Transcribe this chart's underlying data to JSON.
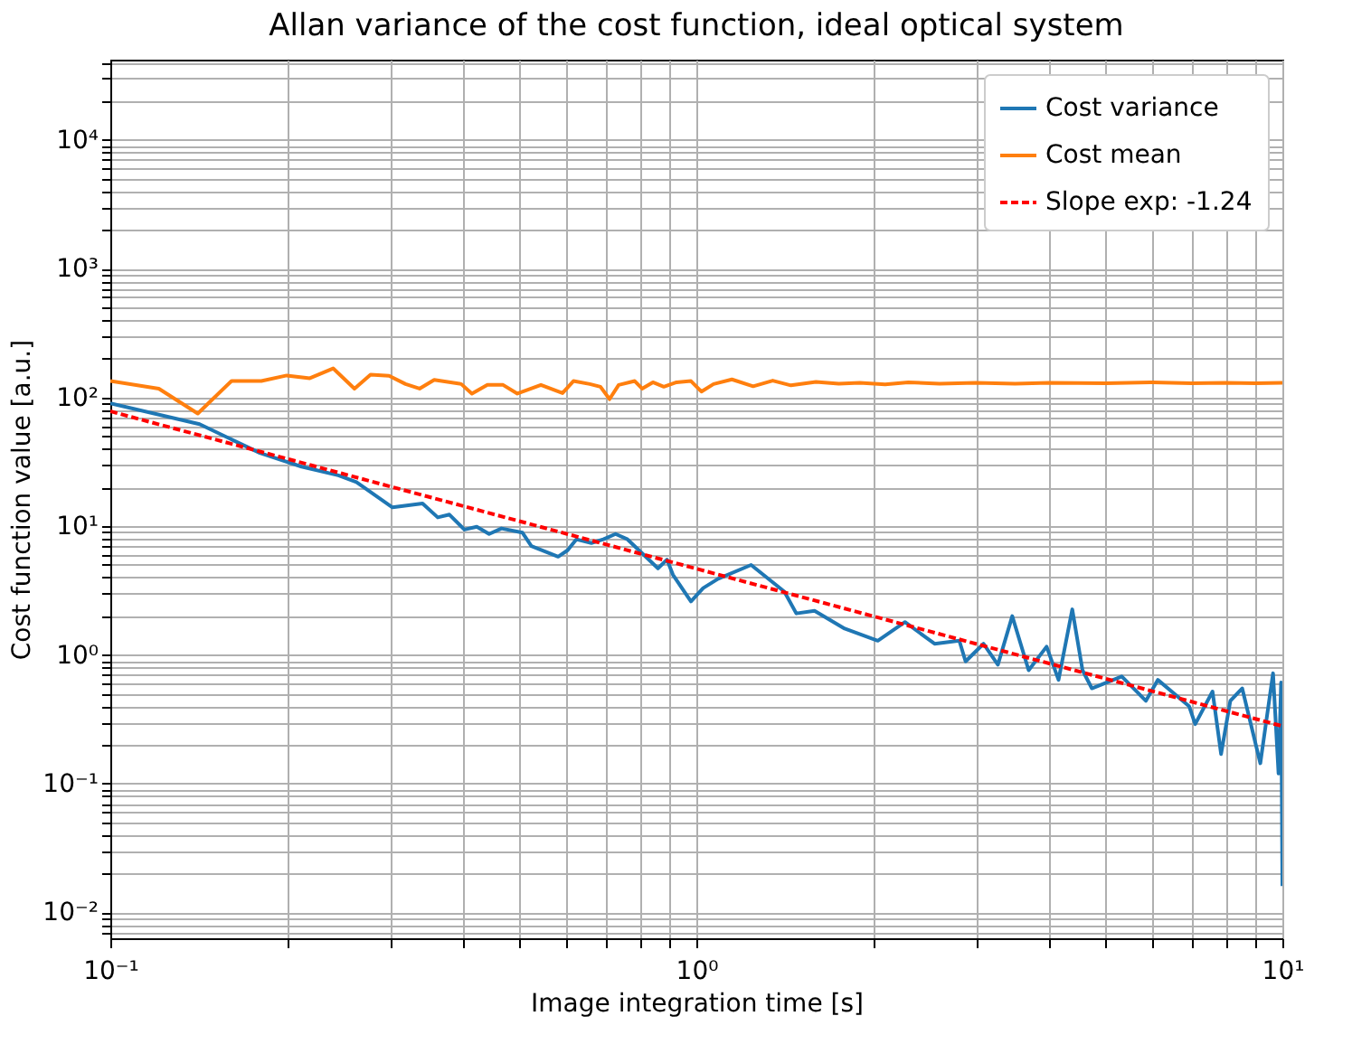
{
  "chart_data": {
    "type": "line",
    "title": "Allan variance of the cost function, ideal optical system",
    "xlabel": "Image integration time [s]",
    "ylabel": "Cost function value [a.u.]",
    "log": "xy",
    "grid": true,
    "legend": "top right",
    "xlim": [
      0.1,
      10
    ],
    "ylim": [
      0.0063,
      42000
    ],
    "xticks": [
      {
        "value": 0.1,
        "label": "10⁻¹"
      },
      {
        "value": 0.2,
        "label": null
      },
      {
        "value": 0.3,
        "label": null
      },
      {
        "value": 0.4,
        "label": null
      },
      {
        "value": 0.5,
        "label": null
      },
      {
        "value": 0.6,
        "label": null
      },
      {
        "value": 0.7,
        "label": null
      },
      {
        "value": 0.8,
        "label": null
      },
      {
        "value": 0.9,
        "label": null
      },
      {
        "value": 1,
        "label": "10⁰"
      },
      {
        "value": 2,
        "label": null
      },
      {
        "value": 3,
        "label": null
      },
      {
        "value": 4,
        "label": null
      },
      {
        "value": 5,
        "label": null
      },
      {
        "value": 6,
        "label": null
      },
      {
        "value": 7,
        "label": null
      },
      {
        "value": 8,
        "label": null
      },
      {
        "value": 9,
        "label": null
      },
      {
        "value": 10,
        "label": "10¹"
      }
    ],
    "yticks": [
      {
        "value": 0.007,
        "label": null
      },
      {
        "value": 0.008,
        "label": null
      },
      {
        "value": 0.009,
        "label": null
      },
      {
        "value": 0.01,
        "label": "10⁻²"
      },
      {
        "value": 0.02,
        "label": null
      },
      {
        "value": 0.03,
        "label": null
      },
      {
        "value": 0.04,
        "label": null
      },
      {
        "value": 0.05,
        "label": null
      },
      {
        "value": 0.06,
        "label": null
      },
      {
        "value": 0.07,
        "label": null
      },
      {
        "value": 0.08,
        "label": null
      },
      {
        "value": 0.09,
        "label": null
      },
      {
        "value": 0.1,
        "label": "10⁻¹"
      },
      {
        "value": 0.2,
        "label": null
      },
      {
        "value": 0.3,
        "label": null
      },
      {
        "value": 0.4,
        "label": null
      },
      {
        "value": 0.5,
        "label": null
      },
      {
        "value": 0.6,
        "label": null
      },
      {
        "value": 0.7,
        "label": null
      },
      {
        "value": 0.8,
        "label": null
      },
      {
        "value": 0.9,
        "label": null
      },
      {
        "value": 1,
        "label": "10⁰"
      },
      {
        "value": 2,
        "label": null
      },
      {
        "value": 3,
        "label": null
      },
      {
        "value": 4,
        "label": null
      },
      {
        "value": 5,
        "label": null
      },
      {
        "value": 6,
        "label": null
      },
      {
        "value": 7,
        "label": null
      },
      {
        "value": 8,
        "label": null
      },
      {
        "value": 9,
        "label": null
      },
      {
        "value": 10,
        "label": "10¹"
      },
      {
        "value": 20,
        "label": null
      },
      {
        "value": 30,
        "label": null
      },
      {
        "value": 40,
        "label": null
      },
      {
        "value": 50,
        "label": null
      },
      {
        "value": 60,
        "label": null
      },
      {
        "value": 70,
        "label": null
      },
      {
        "value": 80,
        "label": null
      },
      {
        "value": 90,
        "label": null
      },
      {
        "value": 100,
        "label": "10²"
      },
      {
        "value": 200,
        "label": null
      },
      {
        "value": 300,
        "label": null
      },
      {
        "value": 400,
        "label": null
      },
      {
        "value": 500,
        "label": null
      },
      {
        "value": 600,
        "label": null
      },
      {
        "value": 700,
        "label": null
      },
      {
        "value": 800,
        "label": null
      },
      {
        "value": 900,
        "label": null
      },
      {
        "value": 1000,
        "label": "10³"
      },
      {
        "value": 2000,
        "label": null
      },
      {
        "value": 3000,
        "label": null
      },
      {
        "value": 4000,
        "label": null
      },
      {
        "value": 5000,
        "label": null
      },
      {
        "value": 6000,
        "label": null
      },
      {
        "value": 7000,
        "label": null
      },
      {
        "value": 8000,
        "label": null
      },
      {
        "value": 9000,
        "label": null
      },
      {
        "value": 10000,
        "label": "10⁴"
      },
      {
        "value": 20000,
        "label": null
      },
      {
        "value": 30000,
        "label": null
      },
      {
        "value": 40000,
        "label": null
      }
    ],
    "series": [
      {
        "name": "Cost variance",
        "color": "#1f77b4",
        "line_style": "solid",
        "x": [
          0.1,
          0.142,
          0.18,
          0.212,
          0.245,
          0.263,
          0.303,
          0.341,
          0.362,
          0.379,
          0.402,
          0.422,
          0.443,
          0.465,
          0.505,
          0.523,
          0.581,
          0.603,
          0.624,
          0.662,
          0.694,
          0.728,
          0.763,
          0.86,
          0.891,
          0.912,
          0.979,
          1.027,
          1.089,
          1.24,
          1.413,
          1.481,
          1.591,
          1.791,
          2.04,
          2.27,
          2.55,
          2.81,
          2.88,
          3.09,
          3.27,
          3.46,
          3.69,
          3.96,
          4.15,
          4.38,
          4.56,
          4.73,
          5.32,
          5.85,
          6.13,
          6.93,
          7.1,
          7.6,
          7.86,
          8.15,
          8.54,
          9.17,
          9.4,
          9.64,
          9.85,
          9.95,
          10
        ],
        "values": [
          90,
          62,
          37,
          29,
          24.8,
          22,
          14,
          15,
          11.7,
          12.3,
          9.4,
          9.9,
          8.7,
          9.6,
          8.9,
          7.0,
          5.8,
          6.5,
          7.9,
          7.4,
          7.9,
          8.7,
          7.9,
          4.7,
          5.5,
          4.2,
          2.6,
          3.3,
          3.9,
          5.0,
          3.1,
          2.1,
          2.2,
          1.6,
          1.29,
          1.8,
          1.22,
          1.29,
          0.89,
          1.22,
          0.84,
          2.0,
          0.76,
          1.16,
          0.64,
          2.26,
          0.76,
          0.55,
          0.68,
          0.44,
          0.64,
          0.4,
          0.29,
          0.52,
          0.17,
          0.44,
          0.55,
          0.144,
          0.32,
          0.72,
          0.12,
          0.61,
          0.016
        ]
      },
      {
        "name": "Cost mean",
        "color": "#ff7f0e",
        "line_style": "solid",
        "x": [
          0.1,
          0.121,
          0.141,
          0.161,
          0.181,
          0.2,
          0.219,
          0.24,
          0.261,
          0.278,
          0.299,
          0.319,
          0.337,
          0.357,
          0.397,
          0.414,
          0.44,
          0.468,
          0.495,
          0.543,
          0.591,
          0.617,
          0.658,
          0.686,
          0.711,
          0.737,
          0.785,
          0.808,
          0.843,
          0.88,
          0.925,
          0.979,
          1.02,
          1.07,
          1.15,
          1.25,
          1.35,
          1.45,
          1.6,
          1.75,
          1.9,
          2.1,
          2.3,
          2.6,
          3,
          3.5,
          4,
          5,
          6,
          7,
          8,
          9,
          10
        ],
        "values": [
          134,
          117,
          75,
          134,
          134,
          148,
          141,
          168,
          117,
          150,
          147,
          127,
          117,
          137,
          127,
          107,
          125,
          125,
          107,
          125,
          108,
          134,
          127,
          121,
          97,
          125,
          134,
          117,
          131,
          121,
          131,
          134,
          111,
          127,
          138,
          122,
          135,
          124,
          132,
          128,
          130,
          126,
          131,
          128,
          130,
          128,
          130,
          129,
          131,
          129,
          130,
          129,
          130
        ]
      },
      {
        "name": "Slope exp: -1.24",
        "color": "#ff0000",
        "line_style": "dashed",
        "x": [
          0.1,
          10
        ],
        "values": [
          78,
          0.28
        ]
      }
    ]
  }
}
